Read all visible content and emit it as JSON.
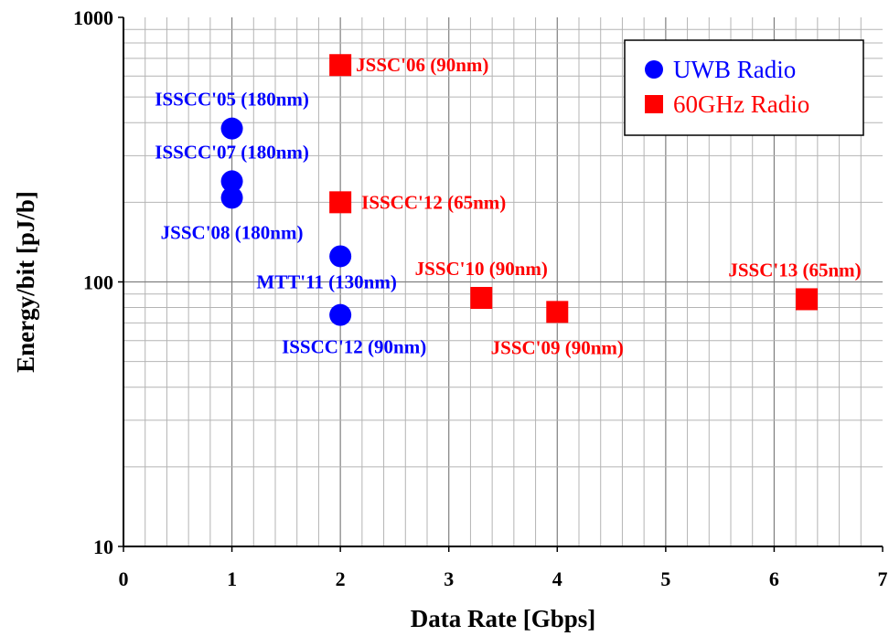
{
  "chart_data": {
    "type": "scatter",
    "title": "",
    "xlabel": "Data Rate [Gbps]",
    "ylabel": "Energy/bit [pJ/b]",
    "xlim": [
      0,
      7
    ],
    "ylim": [
      10,
      1000
    ],
    "yscale": "log",
    "x_ticks": [
      "0",
      "1",
      "2",
      "3",
      "4",
      "5",
      "6",
      "7"
    ],
    "y_ticks": [
      "10",
      "100",
      "1000"
    ],
    "grid": true,
    "legend_position": "top-right",
    "series": [
      {
        "name": "UWB Radio",
        "marker": "circle",
        "color": "#0000ff",
        "points": [
          {
            "x": 1,
            "y": 380,
            "label": "ISSCC'05 (180nm)"
          },
          {
            "x": 1,
            "y": 240,
            "label": "ISSCC'07 (180nm)"
          },
          {
            "x": 1,
            "y": 208,
            "label": "JSSC'08 (180nm)"
          },
          {
            "x": 2,
            "y": 125,
            "label": "MTT'11 (130nm)"
          },
          {
            "x": 2,
            "y": 75,
            "label": "ISSCC'12 (90nm)"
          }
        ]
      },
      {
        "name": "60GHz Radio",
        "marker": "square",
        "color": "#ff0000",
        "points": [
          {
            "x": 2,
            "y": 660,
            "label": "JSSC'06 (90nm)"
          },
          {
            "x": 2,
            "y": 200,
            "label": "ISSCC'12 (65nm)"
          },
          {
            "x": 3.3,
            "y": 87,
            "label": "JSSC'10 (90nm)"
          },
          {
            "x": 4,
            "y": 77,
            "label": "JSSC'09 (90nm)"
          },
          {
            "x": 6.3,
            "y": 86,
            "label": "JSSC'13 (65nm)"
          }
        ]
      }
    ]
  }
}
